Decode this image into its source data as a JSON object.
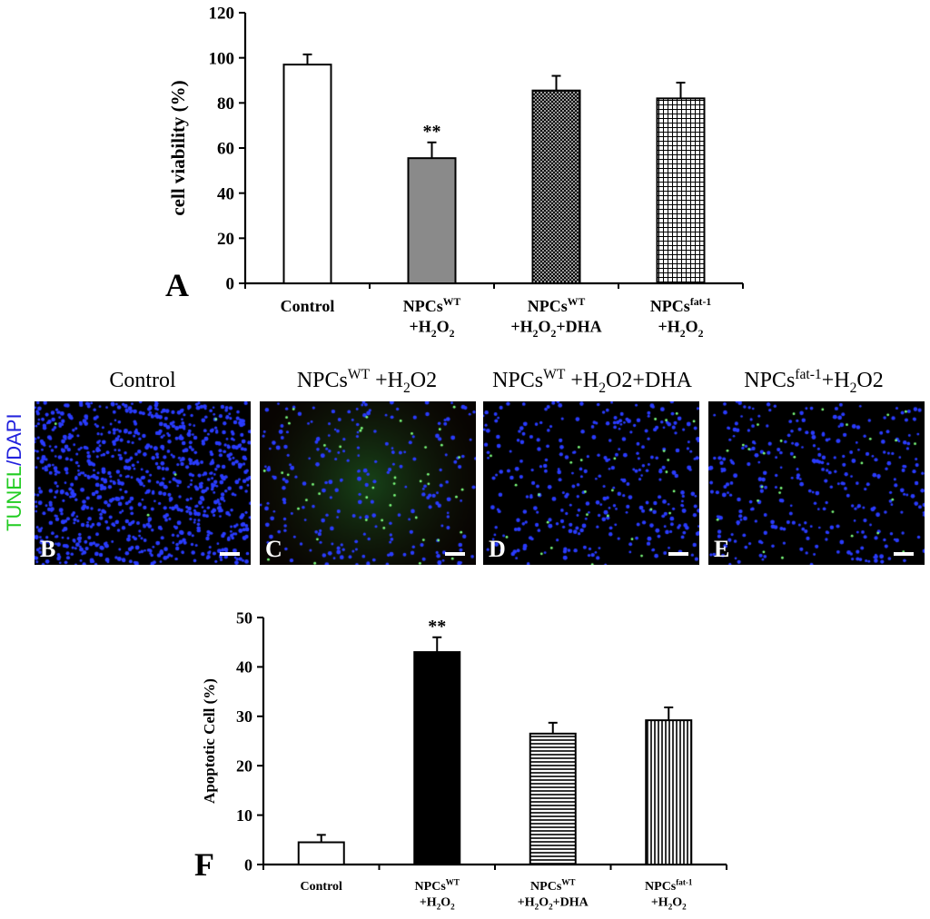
{
  "chart_data": [
    {
      "type": "bar",
      "panel_label": "A",
      "ylabel": "cell viability (%)",
      "ylim": [
        0,
        120
      ],
      "yticks": [
        0,
        20,
        40,
        60,
        80,
        100,
        120
      ],
      "categories": [
        {
          "line1": "Control",
          "line1_sup": "",
          "line2": "",
          "line2_sub": "",
          "line2_end": ""
        },
        {
          "line1": "NPCs",
          "line1_sup": "WT",
          "line2": "+H",
          "line2_sub": "2",
          "line2_end": "O2"
        },
        {
          "line1": "NPCs",
          "line1_sup": "WT",
          "line2": "+H",
          "line2_sub": "2",
          "line2_end": "O2+DHA"
        },
        {
          "line1": "NPCs",
          "line1_sup": "fat-1",
          "line2": "+H",
          "line2_sub": "2",
          "line2_end": "O2"
        }
      ],
      "values": [
        97,
        55.5,
        85.5,
        82
      ],
      "errors": [
        4.5,
        7,
        6.5,
        7
      ],
      "fills": [
        "white",
        "gray",
        "crosshatch",
        "grid"
      ],
      "annotations": [
        "",
        "**",
        "",
        ""
      ]
    },
    {
      "type": "bar",
      "panel_label": "F",
      "ylabel": "Apoptotic Cell (%)",
      "ylim": [
        0,
        50
      ],
      "yticks": [
        0,
        10,
        20,
        30,
        40,
        50
      ],
      "categories": [
        {
          "line1": "Control",
          "line1_sup": "",
          "line2": "",
          "line2_sub": "",
          "line2_end": ""
        },
        {
          "line1": "NPCs",
          "line1_sup": "WT",
          "line2": "+H",
          "line2_sub": "2",
          "line2_end": "O2"
        },
        {
          "line1": "NPCs",
          "line1_sup": "WT",
          "line2": "+H",
          "line2_sub": "2",
          "line2_end": "O2+DHA"
        },
        {
          "line1": "NPCs",
          "line1_sup": "fat-1",
          "line2": "+H",
          "line2_sub": "2",
          "line2_end": "O2"
        }
      ],
      "values": [
        4.5,
        43,
        26.5,
        29.2
      ],
      "errors": [
        1.5,
        3,
        2.2,
        2.6
      ],
      "fills": [
        "white",
        "black",
        "hstripes",
        "vstripes"
      ],
      "annotations": [
        "",
        "**",
        "",
        ""
      ]
    }
  ],
  "micrographs": {
    "ylabel_green": "TUNEL",
    "ylabel_sep": "/",
    "ylabel_blue": "DAPI",
    "panels": [
      {
        "title": "Control",
        "title_sup": "",
        "title_rest": "",
        "title_sub": "",
        "title_end": "",
        "letter": "B",
        "density": "high",
        "apoptotic": "few"
      },
      {
        "title": "NPCs",
        "title_sup": "WT",
        "title_rest": " +H",
        "title_sub": "2",
        "title_end": "O2",
        "letter": "C",
        "density": "low",
        "apoptotic": "many"
      },
      {
        "title": "NPCs",
        "title_sup": "WT",
        "title_rest": " +H",
        "title_sub": "2",
        "title_end": "O2+DHA",
        "letter": "D",
        "density": "medium",
        "apoptotic": "some"
      },
      {
        "title": "NPCs",
        "title_sup": "fat-1",
        "title_rest": "+H",
        "title_sub": "2",
        "title_end": "O2",
        "letter": "E",
        "density": "medium",
        "apoptotic": "some"
      }
    ]
  },
  "colors": {
    "nuclei": "#2a3cff",
    "tunel": "#7dff7d",
    "gray_bar": "#8a8a8a"
  }
}
